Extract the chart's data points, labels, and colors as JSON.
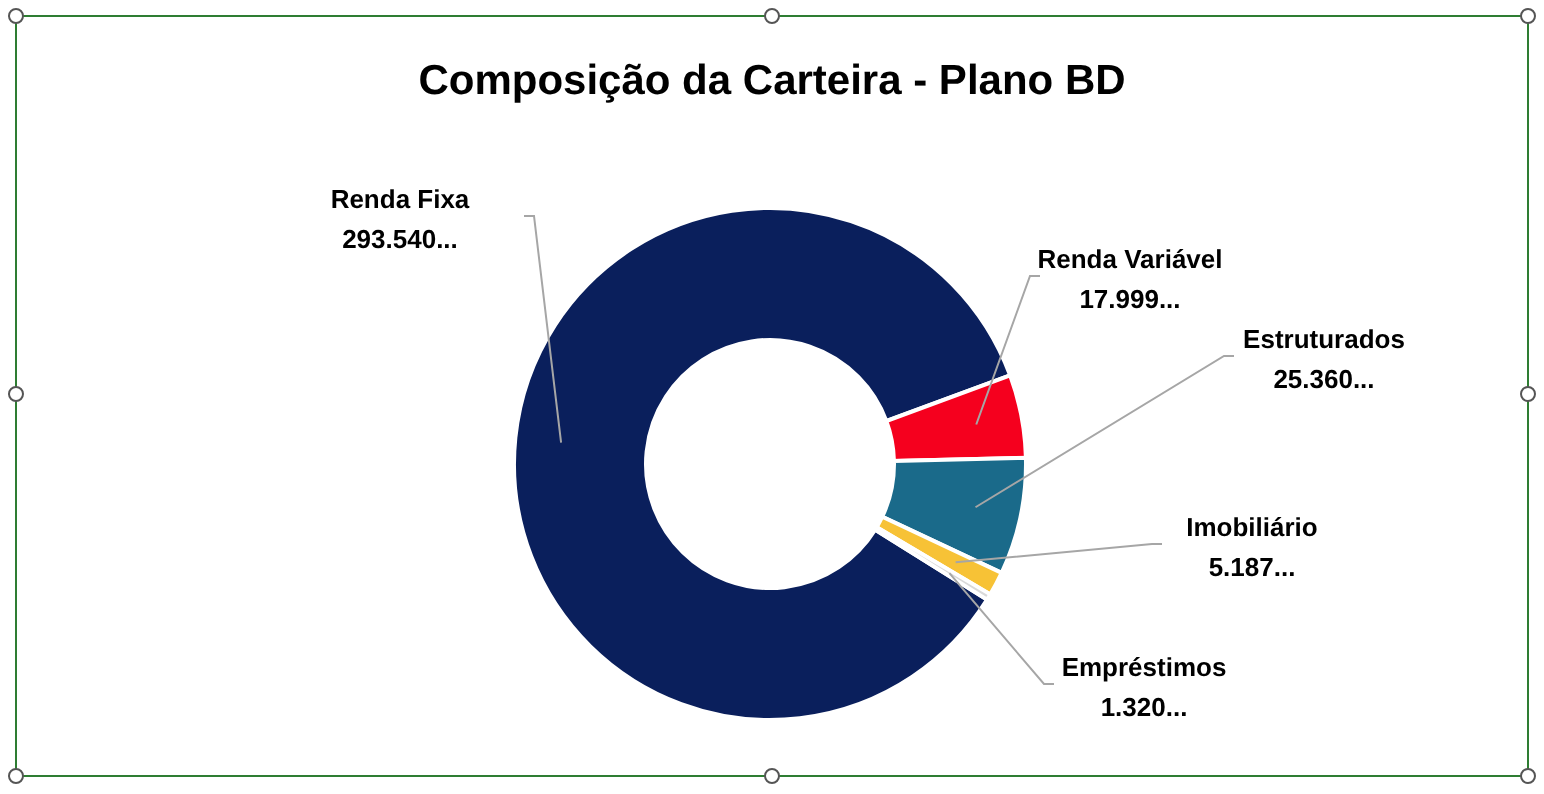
{
  "chart_data": {
    "type": "donut",
    "title": "Composição da Carteira - Plano BD",
    "categories": [
      "Renda Fixa",
      "Renda Variável",
      "Estruturados",
      "Imobiliário",
      "Empréstimos"
    ],
    "values": [
      293540,
      17999,
      25360,
      5187,
      1320
    ],
    "value_labels": [
      "293.540...",
      "17.999...",
      "25.360...",
      "5.187...",
      "1.320..."
    ],
    "colors": [
      "#0a1f5c",
      "#f5001e",
      "#1a6a8a",
      "#f7c236",
      "#d9d9d9"
    ]
  }
}
